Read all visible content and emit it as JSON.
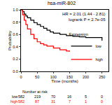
{
  "chart_data": {
    "type": "line",
    "line_style": "step",
    "title": "hsa-miR-802",
    "x_label": "Time (months)",
    "y_label": "Probability",
    "annotations": [
      "HR = 2.01 (1.44 - 2.81)",
      "logrank P = 2.7e-05"
    ],
    "legend_title": "Expression",
    "legend": "lower right",
    "xlim": [
      0,
      270
    ],
    "xticks": [
      0,
      50,
      100,
      150,
      200,
      250
    ],
    "ylim": [
      0,
      1
    ],
    "yticks": [
      {
        "value": 0,
        "label": "0.0"
      },
      {
        "value": 0.2,
        "label": "0.2"
      },
      {
        "value": 0.4,
        "label": "0.4"
      },
      {
        "value": 0.6,
        "label": "0.6"
      },
      {
        "value": 0.8,
        "label": "0.8"
      },
      {
        "value": 1,
        "label": "1.0"
      }
    ],
    "series": [
      {
        "name": "low",
        "color": "#000000",
        "x": [
          0,
          5,
          10,
          15,
          20,
          30,
          40,
          50,
          60,
          70,
          80,
          90,
          100,
          120,
          140,
          160,
          180,
          200,
          220,
          250
        ],
        "values": [
          1,
          0.97,
          0.93,
          0.9,
          0.87,
          0.83,
          0.79,
          0.76,
          0.73,
          0.7,
          0.67,
          0.64,
          0.62,
          0.6,
          0.58,
          0.57,
          0.56,
          0.55,
          0.55,
          0.5
        ]
      },
      {
        "name": "high",
        "color": "#ff0000",
        "x": [
          0,
          5,
          10,
          15,
          20,
          30,
          40,
          50,
          60,
          70,
          80,
          100,
          120,
          140,
          150
        ],
        "values": [
          1,
          0.92,
          0.83,
          0.76,
          0.69,
          0.6,
          0.53,
          0.48,
          0.45,
          0.43,
          0.41,
          0.38,
          0.35,
          0.33,
          0.32
        ]
      }
    ],
    "risk_table": {
      "title": "Number at risk",
      "x": [
        0,
        50,
        100,
        150,
        200,
        250
      ],
      "rows": [
        {
          "name": "low",
          "values": [
            582,
            219,
            70,
            16,
            5,
            0
          ]
        },
        {
          "name": "high",
          "values": [
            582,
            87,
            31,
            7,
            1,
            0
          ]
        }
      ]
    }
  }
}
